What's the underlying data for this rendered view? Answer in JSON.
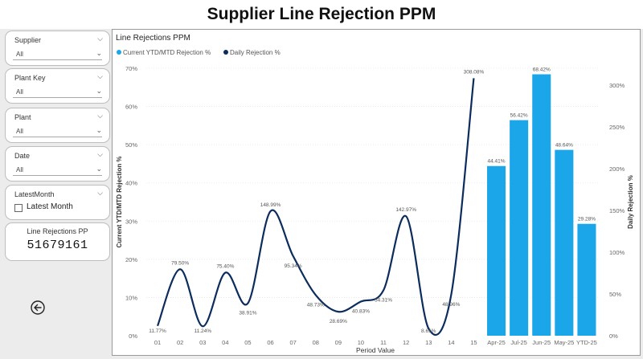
{
  "header": {
    "title": "Supplier Line Rejection PPM"
  },
  "slicers": [
    {
      "label": "Supplier",
      "value": "All"
    },
    {
      "label": "Plant Key",
      "value": "All"
    },
    {
      "label": "Plant",
      "value": "All"
    },
    {
      "label": "Date",
      "value": "All"
    }
  ],
  "latest_month": {
    "label": "LatestMonth",
    "option": "Latest Month",
    "checked": false
  },
  "kpi_card": {
    "title": "Line Rejections PP",
    "value": "51679161"
  },
  "back_button": {
    "icon": "arrow-left-circle-icon"
  },
  "chart_data": {
    "type": "combo",
    "title": "Line Rejections PPM",
    "legend": [
      "Current YTD/MTD Rejection %",
      "Daily Rejection %"
    ],
    "legend_position": "top-left",
    "colors": {
      "bars": "#1aa6e8",
      "line": "#0b2c5c"
    },
    "xlabel": "Period Value",
    "ylabel_left": "Current YTD/MTD Rejection %",
    "ylabel_right": "Daily Rejection %",
    "ylim_left": [
      0,
      70
    ],
    "yticks_left": [
      "0%",
      "10%",
      "20%",
      "30%",
      "40%",
      "50%",
      "60%",
      "70%"
    ],
    "ylim_right": [
      0,
      320
    ],
    "yticks_right": [
      "0%",
      "50%",
      "100%",
      "150%",
      "200%",
      "250%",
      "300%"
    ],
    "categories": [
      "01",
      "02",
      "03",
      "04",
      "05",
      "06",
      "07",
      "08",
      "09",
      "10",
      "11",
      "12",
      "13",
      "14",
      "15",
      "Apr-25",
      "Jul-25",
      "Jun-25",
      "May-25",
      "YTD-25"
    ],
    "line_series": {
      "name": "Daily Rejection %",
      "points": [
        {
          "x": "01",
          "y": 11.77,
          "label": "11.77%"
        },
        {
          "x": "02",
          "y": 79.5,
          "label": "79.50%"
        },
        {
          "x": "03",
          "y": 11.24,
          "label": "11.24%"
        },
        {
          "x": "04",
          "y": 75.4,
          "label": "75.40%"
        },
        {
          "x": "05",
          "y": 38.91,
          "label": "38.91%"
        },
        {
          "x": "06",
          "y": 148.99,
          "label": "148.99%"
        },
        {
          "x": "07",
          "y": 95.34,
          "label": "95.34%"
        },
        {
          "x": "08",
          "y": 48.73,
          "label": "48.73%"
        },
        {
          "x": "09",
          "y": 28.69,
          "label": "28.69%"
        },
        {
          "x": "10",
          "y": 40.83,
          "label": "40.83%"
        },
        {
          "x": "11",
          "y": 54.31,
          "label": "54.31%"
        },
        {
          "x": "12",
          "y": 142.97,
          "label": "142.97%"
        },
        {
          "x": "13",
          "y": 8.61,
          "label": "8.61%"
        },
        {
          "x": "14",
          "y": 48.96,
          "label": "48.96%"
        },
        {
          "x": "15",
          "y": 308.08,
          "label": "308.08%"
        }
      ]
    },
    "bar_series": {
      "name": "Current YTD/MTD Rejection %",
      "points": [
        {
          "x": "Apr-25",
          "y": 44.41,
          "label": "44.41%"
        },
        {
          "x": "Jul-25",
          "y": 56.42,
          "label": "56.42%"
        },
        {
          "x": "Jun-25",
          "y": 68.42,
          "label": "68.42%"
        },
        {
          "x": "May-25",
          "y": 48.64,
          "label": "48.64%"
        },
        {
          "x": "YTD-25",
          "y": 29.28,
          "label": "29.28%"
        }
      ]
    }
  }
}
